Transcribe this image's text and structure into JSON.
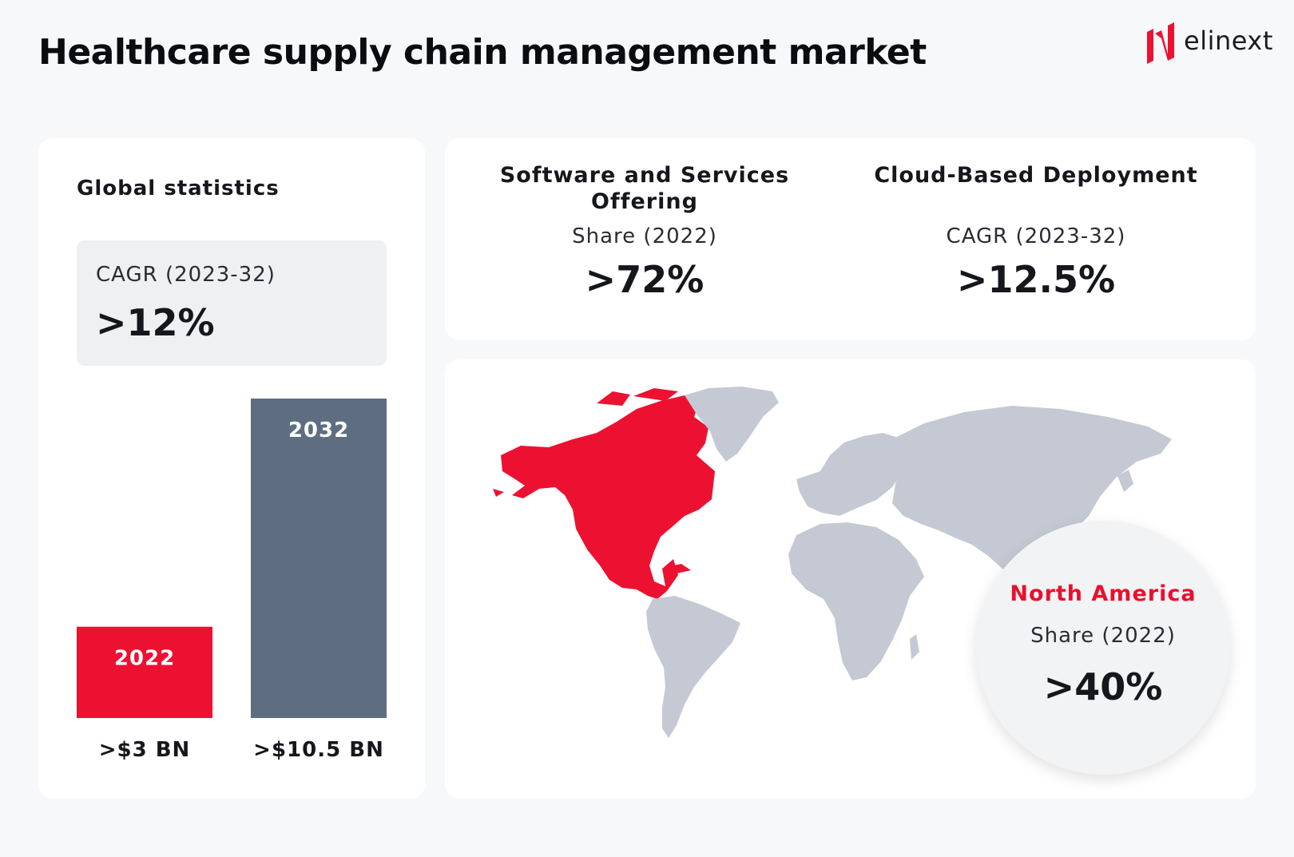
{
  "header": {
    "title": "Healthcare supply chain management market",
    "brand": "elinext"
  },
  "global": {
    "label": "Global statistics",
    "cagr_label": "CAGR (2023-32)",
    "cagr_value": ">12%"
  },
  "chart_data": {
    "type": "bar",
    "title": "Global statistics",
    "categories": [
      "2022",
      "2032"
    ],
    "values": [
      3,
      10.5
    ],
    "value_labels": [
      ">$3 BN",
      ">$10.5 BN"
    ],
    "unit": "USD BN",
    "ylim": [
      0,
      10.5
    ],
    "colors": [
      "#ed1131",
      "#5e6e80"
    ]
  },
  "segments": [
    {
      "heading": "Software and Services Offering",
      "metric": "Share (2022)",
      "value": ">72%"
    },
    {
      "heading": "Cloud-Based Deployment",
      "metric": "CAGR (2023-32)",
      "value": ">12.5%"
    }
  ],
  "region": {
    "name": "North America",
    "metric": "Share (2022)",
    "value": ">40%"
  },
  "colors": {
    "accent": "#ed1131",
    "bar_secondary": "#5e6e80",
    "map_land": "#c4c9d3",
    "background": "#f7f8fa"
  }
}
